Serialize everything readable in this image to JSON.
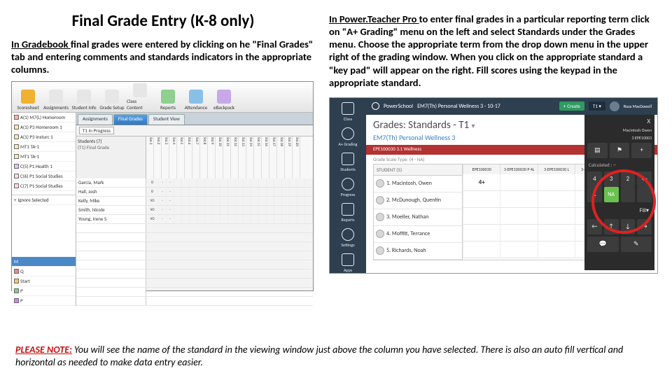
{
  "title": "Final Grade Entry (K-8 only)",
  "left": {
    "lead": "In Gradebook ",
    "para": "final grades were entered by clicking on he \"Final Grades\" tab and entering comments and standards indicators in the appropriate columns."
  },
  "right": {
    "lead": "In Power.Teacher Pro ",
    "para": "to enter final grades in a particular reporting term click on \"A+ Grading\" menu on the left and select Standards under the Grades menu. Choose the appropriate term from the drop down menu in the upper right of the grading window. When you click on the appropriate standard a \"key pad\" will appear on the right. Fill scores using the keypad in the appropriate standard."
  },
  "note": {
    "lead": "PLEASE NOTE:",
    "body": " You will see the name of the standard in the viewing window just above the column you have selected. There is also an auto fill vertical and horizontal as needed to make data entry easier."
  },
  "gradebook": {
    "toolbar": [
      {
        "label": "Scoresheet",
        "color": "#f0b030"
      },
      {
        "label": "Assignments",
        "color": "#e6e6e6"
      },
      {
        "label": "Student Info",
        "color": "#e6e6e6"
      },
      {
        "label": "Grade Setup",
        "color": "#e6e6e6"
      },
      {
        "label": "Class Content",
        "color": "#e6e6e6"
      },
      {
        "label": "Reports",
        "color": "#8fcf8f"
      },
      {
        "label": "Attendance",
        "color": "#88c0e8"
      },
      {
        "label": "eBackpack",
        "color": "#c8a8e8"
      }
    ],
    "sidebar": [
      {
        "label": "A(1) M7(L) Homeroom",
        "color": "#ffb0b0"
      },
      {
        "label": "A(1) P3 Homeroom 1",
        "color": "#ffe8b0"
      },
      {
        "label": "A(1) P3 Insturc 1",
        "color": "#ffe8b0"
      },
      {
        "label": "MT1 TA-1",
        "color": "#ffe8b0"
      },
      {
        "label": "MT1 TA-1",
        "color": "#ffe8b0"
      },
      {
        "label": "C(5) P1 Health 1",
        "color": "#d8c8ff"
      },
      {
        "label": "C(6) P1 Social Studies",
        "color": "#ffd8e8"
      },
      {
        "label": "C(7) P1 Social Studies",
        "color": "#ffd8e8"
      }
    ],
    "bottom_filter": "Ignore Selected",
    "tabs": [
      "Assignments",
      "Final Grades",
      "Student View"
    ],
    "active_tab": 1,
    "term_label": "T1 In Progress",
    "students_header": "Students (7)",
    "final_header": "(T1) Final Grade",
    "students": [
      {
        "name": "Garcia, Mark",
        "grade": "O"
      },
      {
        "name": "Hall, Josh",
        "grade": "O"
      },
      {
        "name": "Kelly, Mike",
        "grade": "VO"
      },
      {
        "name": "Smith, Nicole",
        "grade": "VO"
      },
      {
        "name": "Young, Irene S",
        "grade": "VO"
      }
    ]
  },
  "powerteacher": {
    "brand": "PowerSchool",
    "class_header": "EM7(Th) Personal Wellness 3 - 10-17",
    "create": "Create",
    "term": "T1",
    "user": "Roza MacDowell",
    "left_items": [
      {
        "label": "Class"
      },
      {
        "label": "A+ Grading"
      },
      {
        "label": "Students"
      },
      {
        "label": "Progress"
      },
      {
        "label": "Reports"
      },
      {
        "label": "Settings"
      },
      {
        "label": "Apps"
      }
    ],
    "page_h1": "Grades: Standards - T1",
    "page_sub": "EM7(Th) Personal Wellness 3",
    "redband": "EPE100030 3.1 Wellness",
    "scale_label": "Grade Scale Type: (4 - NA)",
    "students_col": "STUDENT (5)",
    "data_heads": [
      "EPE100030",
      "3-EPE100030 P 4L",
      "3-EPE100030 L",
      "3-EPE100030 2",
      "3-EPE100030"
    ],
    "students": [
      "1. Macintosh, Owen",
      "2. McDunough, Quentin",
      "3. Moeller, Nathan",
      "4. Moffitt, Terrance",
      "5. Richards, Noah"
    ],
    "selected_value": "4+",
    "keypad": {
      "close": "X",
      "user": "Macintosh Owen",
      "sub": "3 EPE10003",
      "calc": "Calculated : --",
      "rows": [
        [
          "4",
          "3",
          "2",
          "←"
        ],
        [
          "1",
          "NA",
          " ",
          " "
        ]
      ],
      "fill": "Fill"
    },
    "colors": {
      "darknav": "#2e3f4f",
      "green": "#2f9a62",
      "panel": "#2b2b2b",
      "na": "#6ac14e",
      "circle": "#d22",
      "red": "#b33232",
      "link": "#3b7fbf"
    }
  }
}
